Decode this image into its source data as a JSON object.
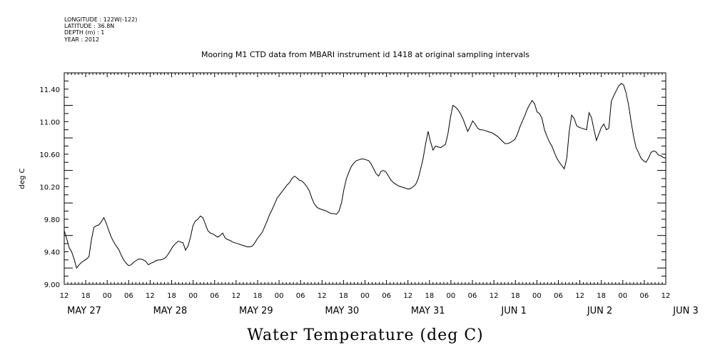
{
  "header": {
    "metadata_lines": [
      "LONGITUDE : 122W(-122)",
      "LATITUDE : 36.8N",
      "DEPTH (m) : 1",
      "YEAR : 2012"
    ]
  },
  "chart_data": {
    "type": "line",
    "title": "Mooring M1 CTD data from MBARI instrument id 1418 at original sampling intervals",
    "xlabel": "Water Temperature (deg C)",
    "ylabel": "deg C",
    "ylim": [
      9.0,
      11.6
    ],
    "y_ticks": [
      "9.00",
      "9.40",
      "9.80",
      "10.20",
      "10.60",
      "11.00",
      "11.40"
    ],
    "x_hour_ticks": [
      "12",
      "18",
      "00",
      "06",
      "12",
      "18",
      "00",
      "06",
      "12",
      "18",
      "00",
      "06",
      "12",
      "18",
      "00",
      "06",
      "12",
      "18",
      "00",
      "06",
      "12",
      "18",
      "00",
      "06",
      "12",
      "18",
      "00",
      "06",
      "12"
    ],
    "x_date_labels": [
      "MAY 27",
      "MAY 28",
      "MAY 29",
      "MAY 30",
      "MAY 31",
      "JUN  1",
      "JUN  2",
      "JUN  3"
    ],
    "grid": false,
    "series": [
      {
        "values_by_hour": [
          [
            0,
            9.66
          ],
          [
            1,
            9.56
          ],
          [
            2,
            9.45
          ],
          [
            3,
            9.4
          ],
          [
            4,
            9.31
          ],
          [
            5,
            9.2
          ],
          [
            6,
            9.24
          ],
          [
            7,
            9.27
          ],
          [
            8,
            9.29
          ],
          [
            9,
            9.31
          ],
          [
            10,
            9.34
          ],
          [
            11,
            9.55
          ],
          [
            12,
            9.7
          ],
          [
            13,
            9.72
          ],
          [
            14,
            9.73
          ],
          [
            15,
            9.77
          ],
          [
            16,
            9.82
          ],
          [
            17,
            9.75
          ],
          [
            18,
            9.66
          ],
          [
            19,
            9.58
          ],
          [
            20,
            9.52
          ],
          [
            21,
            9.47
          ],
          [
            22,
            9.43
          ],
          [
            23,
            9.36
          ],
          [
            24,
            9.3
          ],
          [
            25,
            9.26
          ],
          [
            26,
            9.23
          ],
          [
            27,
            9.24
          ],
          [
            28,
            9.27
          ],
          [
            29,
            9.29
          ],
          [
            30,
            9.31
          ],
          [
            31,
            9.31
          ],
          [
            32,
            9.3
          ],
          [
            33,
            9.28
          ],
          [
            34,
            9.24
          ],
          [
            35,
            9.26
          ],
          [
            36,
            9.27
          ],
          [
            37,
            9.29
          ],
          [
            38,
            9.3
          ],
          [
            39,
            9.3
          ],
          [
            40,
            9.31
          ],
          [
            41,
            9.33
          ],
          [
            42,
            9.37
          ],
          [
            43,
            9.42
          ],
          [
            44,
            9.47
          ],
          [
            45,
            9.5
          ],
          [
            46,
            9.53
          ],
          [
            47,
            9.52
          ],
          [
            48,
            9.51
          ],
          [
            49,
            9.42
          ],
          [
            50,
            9.47
          ],
          [
            51,
            9.58
          ],
          [
            52,
            9.72
          ],
          [
            53,
            9.78
          ],
          [
            54,
            9.8
          ],
          [
            55,
            9.84
          ],
          [
            56,
            9.82
          ],
          [
            57,
            9.74
          ],
          [
            58,
            9.66
          ],
          [
            59,
            9.63
          ],
          [
            60,
            9.62
          ],
          [
            61,
            9.6
          ],
          [
            62,
            9.58
          ],
          [
            63,
            9.6
          ],
          [
            64,
            9.63
          ],
          [
            65,
            9.57
          ],
          [
            66,
            9.55
          ],
          [
            67,
            9.54
          ],
          [
            68,
            9.52
          ],
          [
            69,
            9.51
          ],
          [
            70,
            9.5
          ],
          [
            71,
            9.49
          ],
          [
            72,
            9.48
          ],
          [
            73,
            9.47
          ],
          [
            74,
            9.46
          ],
          [
            75,
            9.46
          ],
          [
            76,
            9.47
          ],
          [
            77,
            9.51
          ],
          [
            78,
            9.56
          ],
          [
            79,
            9.6
          ],
          [
            80,
            9.64
          ],
          [
            81,
            9.71
          ],
          [
            82,
            9.78
          ],
          [
            83,
            9.86
          ],
          [
            84,
            9.92
          ],
          [
            85,
            9.99
          ],
          [
            86,
            10.06
          ],
          [
            87,
            10.1
          ],
          [
            88,
            10.14
          ],
          [
            89,
            10.18
          ],
          [
            90,
            10.22
          ],
          [
            91,
            10.25
          ],
          [
            92,
            10.3
          ],
          [
            93,
            10.33
          ],
          [
            94,
            10.31
          ],
          [
            95,
            10.28
          ],
          [
            96,
            10.27
          ],
          [
            97,
            10.24
          ],
          [
            98,
            10.2
          ],
          [
            99,
            10.15
          ],
          [
            100,
            10.06
          ],
          [
            101,
            9.99
          ],
          [
            102,
            9.95
          ],
          [
            103,
            9.93
          ],
          [
            104,
            9.92
          ],
          [
            105,
            9.91
          ],
          [
            106,
            9.9
          ],
          [
            107,
            9.88
          ],
          [
            108,
            9.87
          ],
          [
            109,
            9.87
          ],
          [
            110,
            9.86
          ],
          [
            111,
            9.9
          ],
          [
            112,
            10.0
          ],
          [
            113,
            10.17
          ],
          [
            114,
            10.3
          ],
          [
            115,
            10.38
          ],
          [
            116,
            10.45
          ],
          [
            117,
            10.49
          ],
          [
            118,
            10.52
          ],
          [
            119,
            10.53
          ],
          [
            120,
            10.54
          ],
          [
            121,
            10.54
          ],
          [
            122,
            10.53
          ],
          [
            123,
            10.52
          ],
          [
            124,
            10.48
          ],
          [
            125,
            10.42
          ],
          [
            126,
            10.36
          ],
          [
            127,
            10.33
          ],
          [
            128,
            10.39
          ],
          [
            129,
            10.4
          ],
          [
            130,
            10.38
          ],
          [
            131,
            10.33
          ],
          [
            132,
            10.28
          ],
          [
            133,
            10.25
          ],
          [
            134,
            10.23
          ],
          [
            135,
            10.21
          ],
          [
            136,
            10.2
          ],
          [
            137,
            10.19
          ],
          [
            138,
            10.18
          ],
          [
            139,
            10.17
          ],
          [
            140,
            10.18
          ],
          [
            141,
            10.2
          ],
          [
            142,
            10.23
          ],
          [
            143,
            10.3
          ],
          [
            144,
            10.42
          ],
          [
            145,
            10.55
          ],
          [
            146,
            10.73
          ],
          [
            147,
            10.88
          ],
          [
            148,
            10.75
          ],
          [
            149,
            10.65
          ],
          [
            150,
            10.7
          ],
          [
            151,
            10.69
          ],
          [
            152,
            10.68
          ],
          [
            153,
            10.7
          ],
          [
            154,
            10.72
          ],
          [
            155,
            10.85
          ],
          [
            156,
            11.05
          ],
          [
            157,
            11.2
          ],
          [
            158,
            11.18
          ],
          [
            159,
            11.15
          ],
          [
            160,
            11.1
          ],
          [
            161,
            11.04
          ],
          [
            162,
            10.96
          ],
          [
            163,
            10.88
          ],
          [
            164,
            10.94
          ],
          [
            165,
            11.01
          ],
          [
            166,
            10.97
          ],
          [
            167,
            10.92
          ],
          [
            168,
            10.9
          ],
          [
            169,
            10.9
          ],
          [
            170,
            10.89
          ],
          [
            171,
            10.88
          ],
          [
            172,
            10.87
          ],
          [
            173,
            10.86
          ],
          [
            174,
            10.84
          ],
          [
            175,
            10.82
          ],
          [
            176,
            10.79
          ],
          [
            177,
            10.76
          ],
          [
            178,
            10.73
          ],
          [
            179,
            10.73
          ],
          [
            180,
            10.74
          ],
          [
            181,
            10.76
          ],
          [
            182,
            10.78
          ],
          [
            183,
            10.84
          ],
          [
            184,
            10.93
          ],
          [
            185,
            11.0
          ],
          [
            186,
            11.07
          ],
          [
            187,
            11.15
          ],
          [
            188,
            11.21
          ],
          [
            189,
            11.26
          ],
          [
            190,
            11.22
          ],
          [
            191,
            11.12
          ],
          [
            192,
            11.1
          ],
          [
            193,
            11.04
          ],
          [
            194,
            10.9
          ],
          [
            195,
            10.82
          ],
          [
            196,
            10.75
          ],
          [
            197,
            10.7
          ],
          [
            198,
            10.62
          ],
          [
            199,
            10.55
          ],
          [
            200,
            10.5
          ],
          [
            201,
            10.46
          ],
          [
            202,
            10.42
          ],
          [
            203,
            10.55
          ],
          [
            204,
            10.88
          ],
          [
            205,
            11.08
          ],
          [
            206,
            11.04
          ],
          [
            207,
            10.95
          ],
          [
            208,
            10.93
          ],
          [
            209,
            10.92
          ],
          [
            210,
            10.91
          ],
          [
            211,
            10.9
          ],
          [
            212,
            11.11
          ],
          [
            213,
            11.05
          ],
          [
            214,
            10.9
          ],
          [
            215,
            10.77
          ],
          [
            216,
            10.85
          ],
          [
            217,
            10.93
          ],
          [
            218,
            10.97
          ],
          [
            219,
            10.9
          ],
          [
            220,
            10.92
          ],
          [
            221,
            11.25
          ],
          [
            222,
            11.32
          ],
          [
            223,
            11.38
          ],
          [
            224,
            11.44
          ],
          [
            225,
            11.47
          ],
          [
            226,
            11.45
          ],
          [
            227,
            11.35
          ],
          [
            228,
            11.2
          ],
          [
            229,
            11.0
          ],
          [
            230,
            10.82
          ],
          [
            231,
            10.68
          ],
          [
            232,
            10.62
          ],
          [
            233,
            10.55
          ],
          [
            234,
            10.52
          ],
          [
            235,
            10.5
          ],
          [
            236,
            10.55
          ],
          [
            237,
            10.62
          ],
          [
            238,
            10.64
          ],
          [
            239,
            10.63
          ],
          [
            240,
            10.59
          ],
          [
            241,
            10.58
          ],
          [
            242,
            10.56
          ],
          [
            243,
            10.55
          ]
        ]
      }
    ]
  }
}
